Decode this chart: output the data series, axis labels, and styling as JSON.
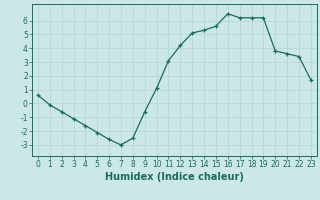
{
  "x": [
    0,
    1,
    2,
    3,
    4,
    5,
    6,
    7,
    8,
    9,
    10,
    11,
    12,
    13,
    14,
    15,
    16,
    17,
    18,
    19,
    20,
    21,
    22,
    23
  ],
  "y": [
    0.6,
    -0.1,
    -0.6,
    -1.1,
    -1.6,
    -2.1,
    -2.6,
    -3.0,
    -2.5,
    -0.6,
    1.1,
    3.1,
    4.2,
    5.1,
    5.3,
    5.6,
    6.5,
    6.2,
    6.2,
    6.2,
    3.8,
    3.6,
    3.4,
    1.7
  ],
  "line_color": "#1a6b5a",
  "marker": "+",
  "background_color": "#cce8e6",
  "grid_color": "#b8d8d5",
  "xlabel": "Humidex (Indice chaleur)",
  "xlim": [
    -0.5,
    23.5
  ],
  "ylim": [
    -3.8,
    7.2
  ],
  "yticks": [
    -3,
    -2,
    -1,
    0,
    1,
    2,
    3,
    4,
    5,
    6
  ],
  "xticks": [
    0,
    1,
    2,
    3,
    4,
    5,
    6,
    7,
    8,
    9,
    10,
    11,
    12,
    13,
    14,
    15,
    16,
    17,
    18,
    19,
    20,
    21,
    22,
    23
  ],
  "tick_color": "#1a6b5a",
  "fontsize_ticks": 5.5,
  "fontsize_label": 7.0
}
